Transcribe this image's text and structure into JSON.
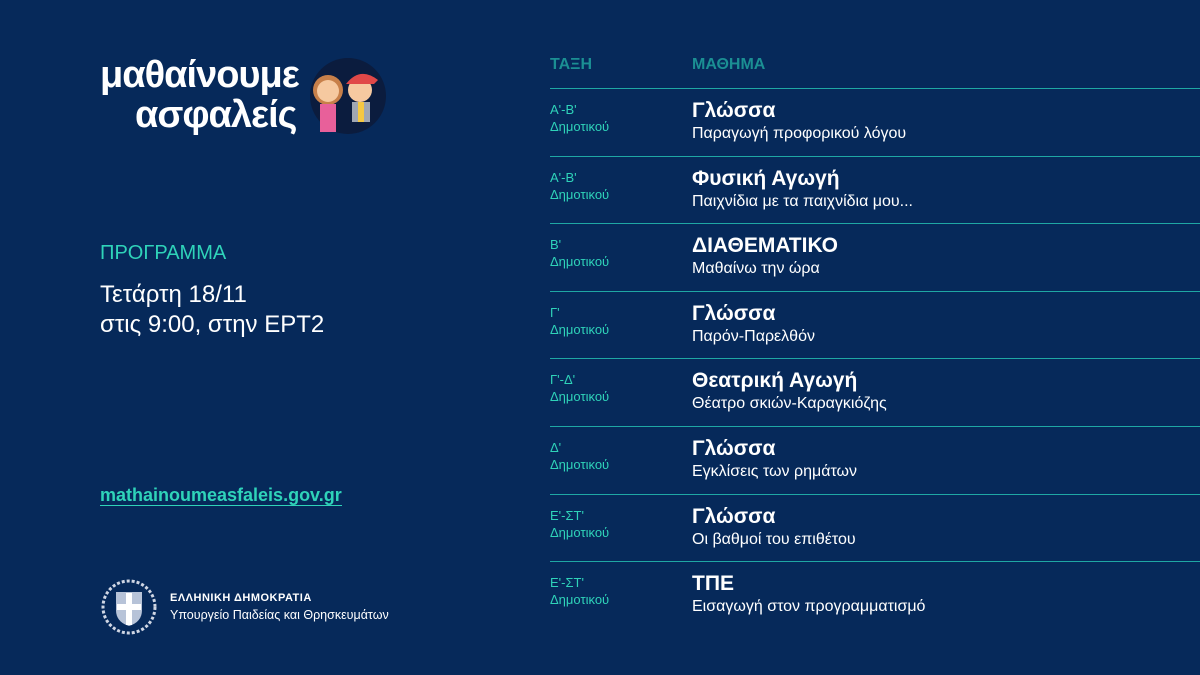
{
  "brand": {
    "line1": "μαθαίνουμε",
    "line2": "ασφαλείς"
  },
  "program": {
    "label": "ΠΡΟΓΡΑΜΜΑ",
    "date": "Τετάρτη 18/11",
    "time": "στις 9:00, στην ΕΡΤ2"
  },
  "website": "mathainoumeasfaleis.gov.gr",
  "government": {
    "name": "ΕΛΛΗΝΙΚΗ ΔΗΜΟΚΡΑΤΙΑ",
    "ministry": "Υπουργείο Παιδείας και Θρησκευμάτων"
  },
  "colors": {
    "background": "#06295a",
    "accent": "#2fd3b9",
    "header": "#1b8f93"
  },
  "table": {
    "headers": [
      "ΤΑΞΗ",
      "ΜΑΘΗΜΑ"
    ],
    "rows": [
      {
        "grade": "Α'-Β'",
        "level": "Δημοτικού",
        "subject": "Γλώσσα",
        "topic": "Παραγωγή προφορικού λόγου"
      },
      {
        "grade": "Α'-Β'",
        "level": "Δημοτικού",
        "subject": "Φυσική Αγωγή",
        "topic": "Παιχνίδια με τα παιχνίδια μου..."
      },
      {
        "grade": "Β'",
        "level": "Δημοτικού",
        "subject": "ΔΙΑΘΕΜΑΤΙΚΟ",
        "topic": "Μαθαίνω την ώρα"
      },
      {
        "grade": "Γ'",
        "level": "Δημοτικού",
        "subject": "Γλώσσα",
        "topic": "Παρόν-Παρελθόν"
      },
      {
        "grade": "Γ'-Δ'",
        "level": "Δημοτικού",
        "subject": "Θεατρική Αγωγή",
        "topic": "Θέατρο σκιών-Καραγκιόζης"
      },
      {
        "grade": "Δ'",
        "level": "Δημοτικού",
        "subject": "Γλώσσα",
        "topic": "Εγκλίσεις των ρημάτων"
      },
      {
        "grade": "Ε'-ΣΤ'",
        "level": "Δημοτικού",
        "subject": "Γλώσσα",
        "topic": "Οι βαθμοί του επιθέτου"
      },
      {
        "grade": "Ε'-ΣΤ'",
        "level": "Δημοτικού",
        "subject": "ΤΠΕ",
        "topic": "Εισαγωγή στον προγραμματισμό"
      }
    ]
  }
}
